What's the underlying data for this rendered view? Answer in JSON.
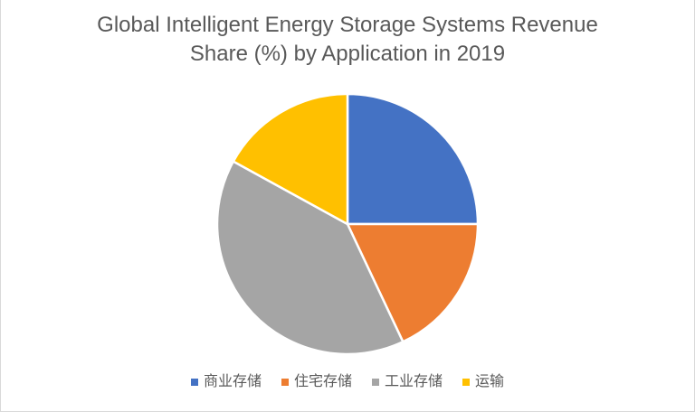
{
  "page": {
    "background": "#ffffff",
    "frame_border_color": "#d9d9d9",
    "text_color": "#595959"
  },
  "chart_data": {
    "type": "pie",
    "title": "Global Intelligent Energy Storage Systems Revenue Share (%) by Application in 2019",
    "title_lines": [
      "Global Intelligent Energy Storage Systems Revenue",
      "Share (%) by Application in 2019"
    ],
    "title_color": "#595959",
    "values_unit": "%",
    "start_angle_deg": 0,
    "direction": "clockwise",
    "legend_position": "bottom",
    "slice_separator_color": "#ffffff",
    "slices": [
      {
        "name": "commercial-storage",
        "label": "商业存储",
        "value": 25,
        "color": "#4472C4"
      },
      {
        "name": "residential-storage",
        "label": "住宅存储",
        "value": 18,
        "color": "#ED7D31"
      },
      {
        "name": "industrial-storage",
        "label": "工业存储",
        "value": 40,
        "color": "#A5A5A5"
      },
      {
        "name": "transportation",
        "label": "运输",
        "value": 17,
        "color": "#FFC000"
      }
    ]
  }
}
